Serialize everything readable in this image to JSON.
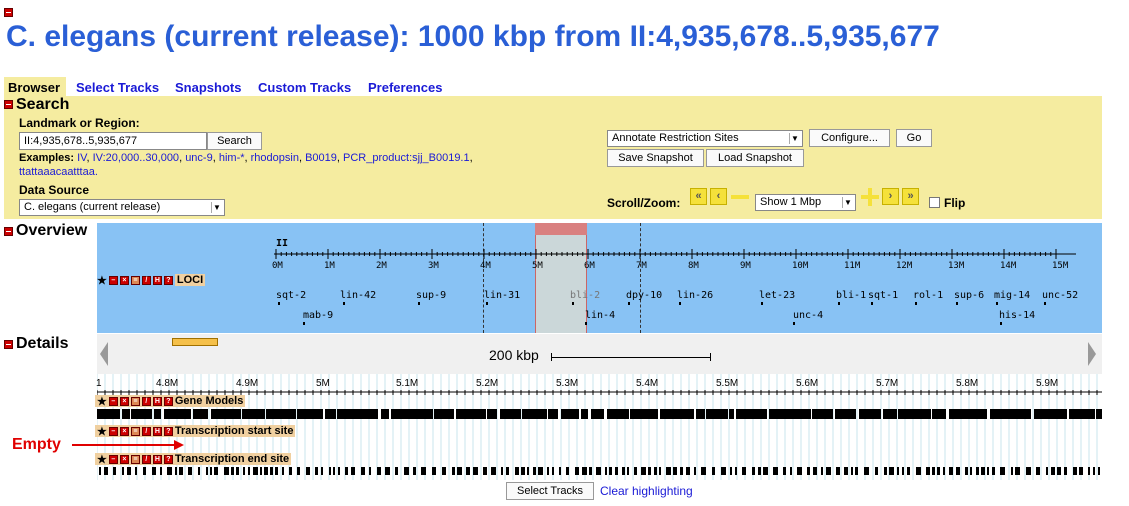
{
  "page": {
    "title": "C. elegans (current release): 1000 kbp from II:4,935,678..5,935,677"
  },
  "tabs": [
    "Browser",
    "Select Tracks",
    "Snapshots",
    "Custom Tracks",
    "Preferences"
  ],
  "search": {
    "section_title": "Search",
    "landmark_label": "Landmark or Region:",
    "landmark_value": "II:4,935,678..5,935,677",
    "search_button": "Search",
    "examples_label": "Examples:",
    "examples": [
      "IV",
      "IV:20,000..30,000",
      "unc-9",
      "him-*",
      "rhodopsin",
      "B0019",
      "PCR_product:sjj_B0019.1",
      "ttattaaacaatttaa."
    ],
    "data_source_label": "Data Source",
    "data_source_value": "C. elegans (current release)",
    "annotate_value": "Annotate Restriction Sites",
    "configure_button": "Configure...",
    "go_button": "Go",
    "save_snapshot": "Save Snapshot",
    "load_snapshot": "Load Snapshot",
    "scroll_zoom_label": "Scroll/Zoom:",
    "zoom_value": "Show 1 Mbp",
    "flip_label": "Flip"
  },
  "overview": {
    "section_title": "Overview",
    "chrom_label": "II",
    "ticks": [
      "0M",
      "1M",
      "2M",
      "3M",
      "4M",
      "5M",
      "6M",
      "7M",
      "8M",
      "9M",
      "10M",
      "11M",
      "12M",
      "13M",
      "14M",
      "15M"
    ],
    "track_name": "LOCI",
    "genes_top": [
      "sqt-2",
      "lin-42",
      "sup-9",
      "lin-31",
      "bli-2",
      "dpy-10",
      "lin-26",
      "let-23",
      "bli-1",
      "sqt-1",
      "rol-1",
      "sup-6",
      "mig-14",
      "unc-52"
    ],
    "genes_bottom": [
      "mab-9",
      "lin-4",
      "unc-4",
      "his-14"
    ]
  },
  "details": {
    "section_title": "Details",
    "scale_label": "200 kbp",
    "ticks": [
      "1",
      "4.8M",
      "4.9M",
      "5M",
      "5.1M",
      "5.2M",
      "5.3M",
      "5.4M",
      "5.5M",
      "5.6M",
      "5.7M",
      "5.8M",
      "5.9M"
    ],
    "tracks": [
      "Gene Models",
      "Transcription start site",
      "Transcription end site"
    ],
    "empty_annotation": "Empty",
    "select_tracks_button": "Select Tracks",
    "clear_highlighting": "Clear highlighting"
  },
  "colors": {
    "title": "#2a5fd6",
    "panel": "#f5eca0",
    "overview": "#88c2f4",
    "highlight": "#d98080",
    "arrow": "#e00000"
  }
}
